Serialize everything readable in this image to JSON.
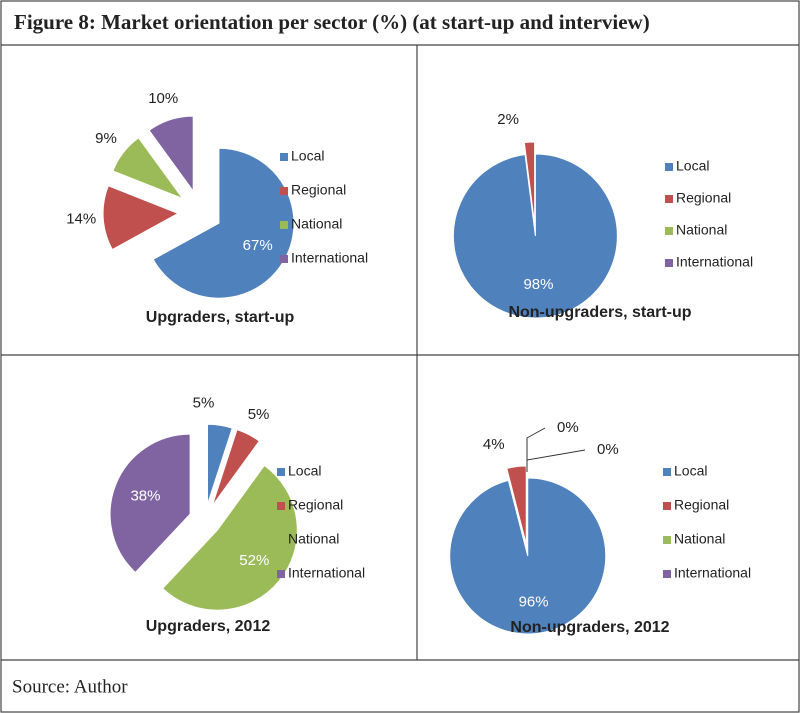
{
  "title": "Figure 8: Market orientation per sector (%) (at start-up and interview)",
  "chart_data": [
    {
      "type": "pie",
      "title": "Upgraders, start-up",
      "categories": [
        "Local",
        "Regional",
        "National",
        "International"
      ],
      "values": [
        67,
        14,
        9,
        10
      ],
      "value_labels": [
        "67%",
        "14%",
        "9%",
        "10%"
      ],
      "colors": [
        "#4f81bd",
        "#c0504d",
        "#9bbb59",
        "#8064a2"
      ]
    },
    {
      "type": "pie",
      "title": "Non-upgraders, start-up",
      "categories": [
        "Local",
        "Regional",
        "National",
        "International"
      ],
      "values": [
        98,
        2,
        0,
        0
      ],
      "value_labels": [
        "98%",
        "2%",
        null,
        null
      ],
      "colors": [
        "#4f81bd",
        "#c0504d",
        "#9bbb59",
        "#8064a2"
      ]
    },
    {
      "type": "pie",
      "title": "Upgraders, 2012",
      "categories": [
        "Local",
        "Regional",
        "National",
        "International"
      ],
      "values": [
        5,
        5,
        52,
        38
      ],
      "value_labels": [
        "5%",
        "5%",
        "52%",
        "38%"
      ],
      "colors": [
        "#4f81bd",
        "#c0504d",
        "#9bbb59",
        "#8064a2"
      ]
    },
    {
      "type": "pie",
      "title": "Non-upgraders, 2012",
      "categories": [
        "Local",
        "Regional",
        "National",
        "International"
      ],
      "values": [
        96,
        4,
        0,
        0
      ],
      "value_labels": [
        "96%",
        "4%",
        "0%",
        "0%"
      ],
      "colors": [
        "#4f81bd",
        "#c0504d",
        "#9bbb59",
        "#8064a2"
      ]
    }
  ],
  "source": "Source: Author"
}
